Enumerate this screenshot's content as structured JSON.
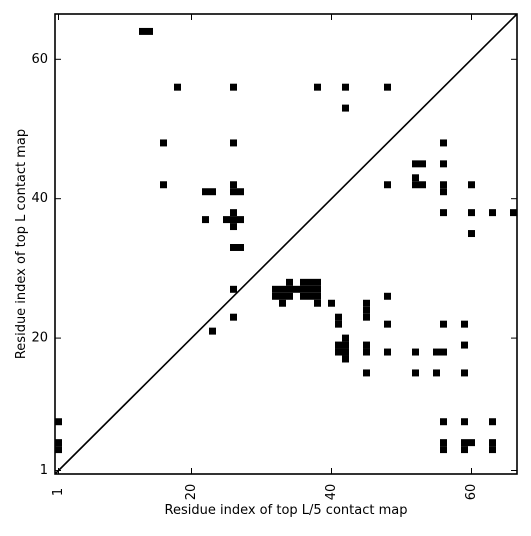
{
  "chart_data": {
    "type": "heatmap",
    "title": "",
    "xlabel": "Residue index of top L/5 contact map",
    "ylabel": "Residue index of top L contact map",
    "xlim": [
      0.5,
      66.5
    ],
    "ylim": [
      0.5,
      66.5
    ],
    "xticks": [
      1,
      20,
      40,
      60
    ],
    "yticks": [
      1,
      20,
      40,
      60
    ],
    "x_tick_labels_rotated": true,
    "grid": false,
    "diagonal_line": true,
    "cell_color": "#000000",
    "background_color": "#ffffff",
    "lower_triangle_contacts": [
      [
        13,
        64
      ],
      [
        16,
        42
      ],
      [
        16,
        48
      ],
      [
        18,
        56
      ],
      [
        22,
        37
      ],
      [
        22,
        41
      ],
      [
        23,
        21
      ],
      [
        26,
        23
      ],
      [
        26,
        27
      ],
      [
        26,
        33
      ],
      [
        26,
        36
      ],
      [
        26,
        37
      ],
      [
        26,
        38
      ],
      [
        26,
        41
      ],
      [
        26,
        42
      ],
      [
        26,
        48
      ],
      [
        26,
        56
      ],
      [
        33,
        25
      ],
      [
        33,
        26
      ],
      [
        33,
        27
      ],
      [
        34,
        26
      ],
      [
        34,
        27
      ],
      [
        35,
        27
      ],
      [
        36,
        27
      ],
      [
        36,
        28
      ],
      [
        37,
        27
      ],
      [
        37,
        28
      ],
      [
        38,
        25
      ],
      [
        38,
        26
      ],
      [
        38,
        27
      ],
      [
        38,
        28
      ],
      [
        41,
        22
      ],
      [
        41,
        23
      ],
      [
        42,
        17
      ],
      [
        42,
        18
      ],
      [
        42,
        19
      ],
      [
        42,
        20
      ],
      [
        45,
        23
      ],
      [
        45,
        24
      ],
      [
        45,
        25
      ],
      [
        48,
        26
      ],
      [
        48,
        42
      ],
      [
        52,
        42
      ],
      [
        52,
        43
      ],
      [
        52,
        45
      ],
      [
        55,
        15
      ],
      [
        56,
        4
      ],
      [
        56,
        5
      ],
      [
        56,
        8
      ],
      [
        56,
        18
      ],
      [
        56,
        22
      ],
      [
        56,
        38
      ],
      [
        56,
        41
      ],
      [
        56,
        42
      ],
      [
        56,
        45
      ],
      [
        59,
        4
      ],
      [
        59,
        5
      ],
      [
        59,
        8
      ],
      [
        59,
        15
      ],
      [
        59,
        19
      ],
      [
        59,
        22
      ],
      [
        60,
        5
      ],
      [
        60,
        35
      ],
      [
        60,
        38
      ],
      [
        60,
        42
      ],
      [
        63,
        4
      ],
      [
        63,
        5
      ],
      [
        63,
        8
      ],
      [
        63,
        38
      ],
      [
        66,
        38
      ]
    ],
    "upper_triangle_contacts": [
      [
        1,
        4
      ],
      [
        1,
        5
      ],
      [
        1,
        8
      ],
      [
        14,
        64
      ],
      [
        18,
        56
      ],
      [
        23,
        41
      ],
      [
        25,
        37
      ],
      [
        26,
        33
      ],
      [
        27,
        33
      ],
      [
        27,
        37
      ],
      [
        27,
        41
      ],
      [
        33,
        26
      ],
      [
        33,
        27
      ],
      [
        32,
        26
      ],
      [
        32,
        27
      ],
      [
        33,
        25
      ],
      [
        34,
        26
      ],
      [
        34,
        27
      ],
      [
        34,
        28
      ],
      [
        35,
        27
      ],
      [
        36,
        26
      ],
      [
        36,
        27
      ],
      [
        37,
        26
      ],
      [
        37,
        27
      ],
      [
        37,
        28
      ],
      [
        38,
        25
      ],
      [
        38,
        56
      ],
      [
        40,
        25
      ],
      [
        41,
        18
      ],
      [
        41,
        19
      ],
      [
        41,
        22
      ],
      [
        41,
        23
      ],
      [
        42,
        18
      ],
      [
        42,
        19
      ],
      [
        42,
        53
      ],
      [
        42,
        56
      ],
      [
        45,
        15
      ],
      [
        45,
        18
      ],
      [
        45,
        19
      ],
      [
        48,
        18
      ],
      [
        48,
        22
      ],
      [
        48,
        56
      ],
      [
        52,
        15
      ],
      [
        52,
        18
      ],
      [
        52,
        42
      ],
      [
        52,
        45
      ],
      [
        53,
        42
      ],
      [
        53,
        45
      ],
      [
        55,
        15
      ],
      [
        55,
        18
      ],
      [
        56,
        4
      ],
      [
        56,
        5
      ],
      [
        56,
        8
      ],
      [
        56,
        18
      ],
      [
        56,
        22
      ],
      [
        56,
        38
      ],
      [
        56,
        41
      ],
      [
        56,
        42
      ],
      [
        56,
        45
      ],
      [
        56,
        48
      ],
      [
        59,
        4
      ],
      [
        59,
        5
      ],
      [
        59,
        8
      ],
      [
        59,
        15
      ],
      [
        59,
        19
      ],
      [
        59,
        22
      ],
      [
        60,
        5
      ],
      [
        60,
        35
      ],
      [
        60,
        38
      ],
      [
        60,
        42
      ],
      [
        63,
        4
      ],
      [
        63,
        5
      ],
      [
        63,
        8
      ],
      [
        63,
        38
      ],
      [
        66,
        38
      ]
    ]
  }
}
